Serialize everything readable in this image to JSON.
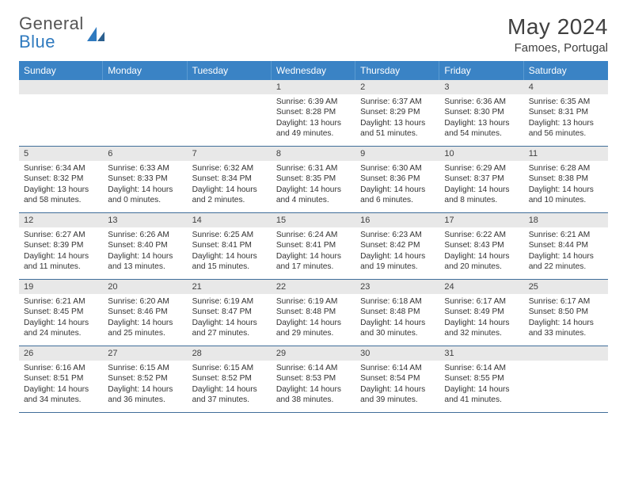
{
  "logo": {
    "line1_a": "General",
    "line1_b": "Blue"
  },
  "title": "May 2024",
  "location": "Famoes, Portugal",
  "weekdays": [
    "Sunday",
    "Monday",
    "Tuesday",
    "Wednesday",
    "Thursday",
    "Friday",
    "Saturday"
  ],
  "colors": {
    "header_bg": "#3a83c5",
    "header_fg": "#ffffff",
    "daynum_bg": "#e8e8e8",
    "row_border": "#406e9a",
    "logo_blue": "#2f7abf",
    "text": "#404040"
  },
  "weeks": [
    [
      {
        "n": "",
        "r1": "",
        "r2": "",
        "d1": "",
        "d2": ""
      },
      {
        "n": "",
        "r1": "",
        "r2": "",
        "d1": "",
        "d2": ""
      },
      {
        "n": "",
        "r1": "",
        "r2": "",
        "d1": "",
        "d2": ""
      },
      {
        "n": "1",
        "r1": "Sunrise: 6:39 AM",
        "r2": "Sunset: 8:28 PM",
        "d1": "Daylight: 13 hours",
        "d2": "and 49 minutes."
      },
      {
        "n": "2",
        "r1": "Sunrise: 6:37 AM",
        "r2": "Sunset: 8:29 PM",
        "d1": "Daylight: 13 hours",
        "d2": "and 51 minutes."
      },
      {
        "n": "3",
        "r1": "Sunrise: 6:36 AM",
        "r2": "Sunset: 8:30 PM",
        "d1": "Daylight: 13 hours",
        "d2": "and 54 minutes."
      },
      {
        "n": "4",
        "r1": "Sunrise: 6:35 AM",
        "r2": "Sunset: 8:31 PM",
        "d1": "Daylight: 13 hours",
        "d2": "and 56 minutes."
      }
    ],
    [
      {
        "n": "5",
        "r1": "Sunrise: 6:34 AM",
        "r2": "Sunset: 8:32 PM",
        "d1": "Daylight: 13 hours",
        "d2": "and 58 minutes."
      },
      {
        "n": "6",
        "r1": "Sunrise: 6:33 AM",
        "r2": "Sunset: 8:33 PM",
        "d1": "Daylight: 14 hours",
        "d2": "and 0 minutes."
      },
      {
        "n": "7",
        "r1": "Sunrise: 6:32 AM",
        "r2": "Sunset: 8:34 PM",
        "d1": "Daylight: 14 hours",
        "d2": "and 2 minutes."
      },
      {
        "n": "8",
        "r1": "Sunrise: 6:31 AM",
        "r2": "Sunset: 8:35 PM",
        "d1": "Daylight: 14 hours",
        "d2": "and 4 minutes."
      },
      {
        "n": "9",
        "r1": "Sunrise: 6:30 AM",
        "r2": "Sunset: 8:36 PM",
        "d1": "Daylight: 14 hours",
        "d2": "and 6 minutes."
      },
      {
        "n": "10",
        "r1": "Sunrise: 6:29 AM",
        "r2": "Sunset: 8:37 PM",
        "d1": "Daylight: 14 hours",
        "d2": "and 8 minutes."
      },
      {
        "n": "11",
        "r1": "Sunrise: 6:28 AM",
        "r2": "Sunset: 8:38 PM",
        "d1": "Daylight: 14 hours",
        "d2": "and 10 minutes."
      }
    ],
    [
      {
        "n": "12",
        "r1": "Sunrise: 6:27 AM",
        "r2": "Sunset: 8:39 PM",
        "d1": "Daylight: 14 hours",
        "d2": "and 11 minutes."
      },
      {
        "n": "13",
        "r1": "Sunrise: 6:26 AM",
        "r2": "Sunset: 8:40 PM",
        "d1": "Daylight: 14 hours",
        "d2": "and 13 minutes."
      },
      {
        "n": "14",
        "r1": "Sunrise: 6:25 AM",
        "r2": "Sunset: 8:41 PM",
        "d1": "Daylight: 14 hours",
        "d2": "and 15 minutes."
      },
      {
        "n": "15",
        "r1": "Sunrise: 6:24 AM",
        "r2": "Sunset: 8:41 PM",
        "d1": "Daylight: 14 hours",
        "d2": "and 17 minutes."
      },
      {
        "n": "16",
        "r1": "Sunrise: 6:23 AM",
        "r2": "Sunset: 8:42 PM",
        "d1": "Daylight: 14 hours",
        "d2": "and 19 minutes."
      },
      {
        "n": "17",
        "r1": "Sunrise: 6:22 AM",
        "r2": "Sunset: 8:43 PM",
        "d1": "Daylight: 14 hours",
        "d2": "and 20 minutes."
      },
      {
        "n": "18",
        "r1": "Sunrise: 6:21 AM",
        "r2": "Sunset: 8:44 PM",
        "d1": "Daylight: 14 hours",
        "d2": "and 22 minutes."
      }
    ],
    [
      {
        "n": "19",
        "r1": "Sunrise: 6:21 AM",
        "r2": "Sunset: 8:45 PM",
        "d1": "Daylight: 14 hours",
        "d2": "and 24 minutes."
      },
      {
        "n": "20",
        "r1": "Sunrise: 6:20 AM",
        "r2": "Sunset: 8:46 PM",
        "d1": "Daylight: 14 hours",
        "d2": "and 25 minutes."
      },
      {
        "n": "21",
        "r1": "Sunrise: 6:19 AM",
        "r2": "Sunset: 8:47 PM",
        "d1": "Daylight: 14 hours",
        "d2": "and 27 minutes."
      },
      {
        "n": "22",
        "r1": "Sunrise: 6:19 AM",
        "r2": "Sunset: 8:48 PM",
        "d1": "Daylight: 14 hours",
        "d2": "and 29 minutes."
      },
      {
        "n": "23",
        "r1": "Sunrise: 6:18 AM",
        "r2": "Sunset: 8:48 PM",
        "d1": "Daylight: 14 hours",
        "d2": "and 30 minutes."
      },
      {
        "n": "24",
        "r1": "Sunrise: 6:17 AM",
        "r2": "Sunset: 8:49 PM",
        "d1": "Daylight: 14 hours",
        "d2": "and 32 minutes."
      },
      {
        "n": "25",
        "r1": "Sunrise: 6:17 AM",
        "r2": "Sunset: 8:50 PM",
        "d1": "Daylight: 14 hours",
        "d2": "and 33 minutes."
      }
    ],
    [
      {
        "n": "26",
        "r1": "Sunrise: 6:16 AM",
        "r2": "Sunset: 8:51 PM",
        "d1": "Daylight: 14 hours",
        "d2": "and 34 minutes."
      },
      {
        "n": "27",
        "r1": "Sunrise: 6:15 AM",
        "r2": "Sunset: 8:52 PM",
        "d1": "Daylight: 14 hours",
        "d2": "and 36 minutes."
      },
      {
        "n": "28",
        "r1": "Sunrise: 6:15 AM",
        "r2": "Sunset: 8:52 PM",
        "d1": "Daylight: 14 hours",
        "d2": "and 37 minutes."
      },
      {
        "n": "29",
        "r1": "Sunrise: 6:14 AM",
        "r2": "Sunset: 8:53 PM",
        "d1": "Daylight: 14 hours",
        "d2": "and 38 minutes."
      },
      {
        "n": "30",
        "r1": "Sunrise: 6:14 AM",
        "r2": "Sunset: 8:54 PM",
        "d1": "Daylight: 14 hours",
        "d2": "and 39 minutes."
      },
      {
        "n": "31",
        "r1": "Sunrise: 6:14 AM",
        "r2": "Sunset: 8:55 PM",
        "d1": "Daylight: 14 hours",
        "d2": "and 41 minutes."
      },
      {
        "n": "",
        "r1": "",
        "r2": "",
        "d1": "",
        "d2": ""
      }
    ]
  ]
}
